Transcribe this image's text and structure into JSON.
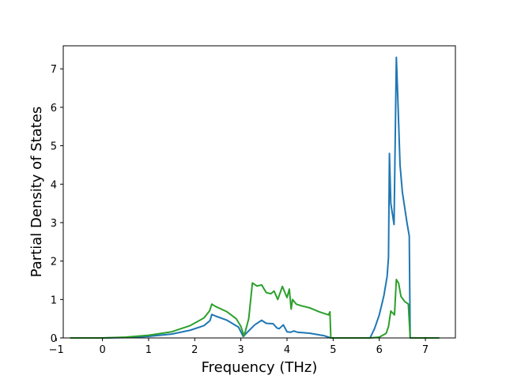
{
  "chart_data": {
    "type": "line",
    "title": "",
    "xlabel": "Frequency (THz)",
    "ylabel": "Partial Density of States",
    "xlim": [
      -0.85,
      7.65
    ],
    "ylim": [
      0,
      7.6
    ],
    "xticks": [
      -1,
      0,
      1,
      2,
      3,
      4,
      5,
      6,
      7
    ],
    "yticks": [
      0,
      1,
      2,
      3,
      4,
      5,
      6,
      7
    ],
    "grid": false,
    "legend": "none",
    "series": [
      {
        "color": "#1f77b4",
        "points": [
          [
            -0.7,
            0.0
          ],
          [
            0.0,
            0.0
          ],
          [
            0.5,
            0.01
          ],
          [
            1.0,
            0.04
          ],
          [
            1.5,
            0.1
          ],
          [
            1.9,
            0.2
          ],
          [
            2.2,
            0.32
          ],
          [
            2.33,
            0.45
          ],
          [
            2.37,
            0.61
          ],
          [
            2.45,
            0.57
          ],
          [
            2.7,
            0.46
          ],
          [
            2.95,
            0.28
          ],
          [
            3.05,
            0.04
          ],
          [
            3.1,
            0.1
          ],
          [
            3.3,
            0.34
          ],
          [
            3.45,
            0.46
          ],
          [
            3.55,
            0.38
          ],
          [
            3.7,
            0.37
          ],
          [
            3.78,
            0.26
          ],
          [
            3.83,
            0.24
          ],
          [
            3.92,
            0.34
          ],
          [
            4.0,
            0.16
          ],
          [
            4.08,
            0.15
          ],
          [
            4.15,
            0.18
          ],
          [
            4.22,
            0.15
          ],
          [
            4.5,
            0.12
          ],
          [
            4.8,
            0.06
          ],
          [
            4.95,
            0.0
          ],
          [
            5.8,
            0.0
          ],
          [
            5.9,
            0.25
          ],
          [
            6.0,
            0.6
          ],
          [
            6.1,
            1.1
          ],
          [
            6.17,
            1.6
          ],
          [
            6.2,
            2.1
          ],
          [
            6.22,
            4.8
          ],
          [
            6.25,
            3.5
          ],
          [
            6.32,
            2.95
          ],
          [
            6.37,
            7.3
          ],
          [
            6.4,
            6.3
          ],
          [
            6.45,
            4.5
          ],
          [
            6.5,
            3.8
          ],
          [
            6.6,
            3.0
          ],
          [
            6.65,
            2.65
          ],
          [
            6.67,
            0.0
          ],
          [
            7.3,
            0.0
          ]
        ]
      },
      {
        "color": "#2ca02c",
        "points": [
          [
            -0.7,
            0.0
          ],
          [
            0.0,
            0.0
          ],
          [
            0.5,
            0.02
          ],
          [
            1.0,
            0.07
          ],
          [
            1.5,
            0.16
          ],
          [
            1.9,
            0.32
          ],
          [
            2.2,
            0.52
          ],
          [
            2.32,
            0.7
          ],
          [
            2.37,
            0.88
          ],
          [
            2.45,
            0.82
          ],
          [
            2.7,
            0.68
          ],
          [
            2.9,
            0.5
          ],
          [
            3.0,
            0.3
          ],
          [
            3.07,
            0.05
          ],
          [
            3.17,
            0.5
          ],
          [
            3.25,
            1.43
          ],
          [
            3.35,
            1.35
          ],
          [
            3.45,
            1.38
          ],
          [
            3.55,
            1.18
          ],
          [
            3.65,
            1.15
          ],
          [
            3.72,
            1.22
          ],
          [
            3.8,
            1.0
          ],
          [
            3.9,
            1.34
          ],
          [
            4.0,
            1.05
          ],
          [
            4.05,
            1.27
          ],
          [
            4.09,
            0.75
          ],
          [
            4.12,
            1.0
          ],
          [
            4.2,
            0.88
          ],
          [
            4.3,
            0.84
          ],
          [
            4.5,
            0.78
          ],
          [
            4.7,
            0.68
          ],
          [
            4.9,
            0.6
          ],
          [
            4.93,
            0.68
          ],
          [
            4.95,
            0.0
          ],
          [
            5.8,
            0.0
          ],
          [
            6.0,
            0.02
          ],
          [
            6.15,
            0.12
          ],
          [
            6.2,
            0.3
          ],
          [
            6.25,
            0.7
          ],
          [
            6.33,
            0.6
          ],
          [
            6.37,
            1.52
          ],
          [
            6.42,
            1.42
          ],
          [
            6.47,
            1.08
          ],
          [
            6.55,
            0.95
          ],
          [
            6.63,
            0.88
          ],
          [
            6.67,
            0.0
          ],
          [
            7.3,
            0.0
          ]
        ]
      }
    ]
  }
}
